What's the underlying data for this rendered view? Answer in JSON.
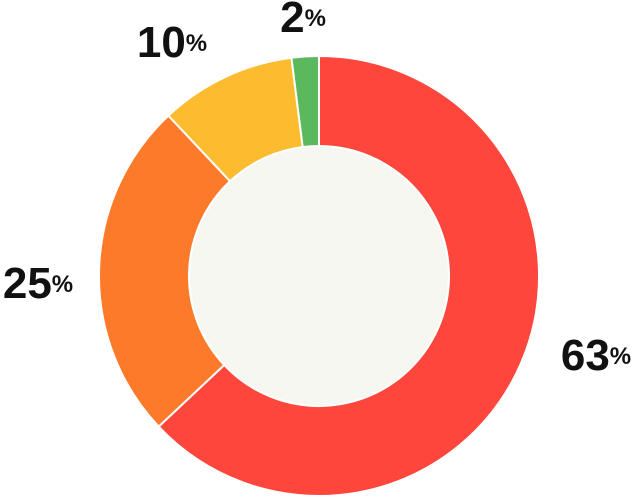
{
  "chart_data": {
    "type": "donut",
    "values": [
      63,
      25,
      10,
      2
    ],
    "value_labels": [
      "63%",
      "25%",
      "10%",
      "2%"
    ],
    "colors": [
      "#fe463c",
      "#fd7a2b",
      "#fdbb2f",
      "#5cb85c"
    ]
  }
}
